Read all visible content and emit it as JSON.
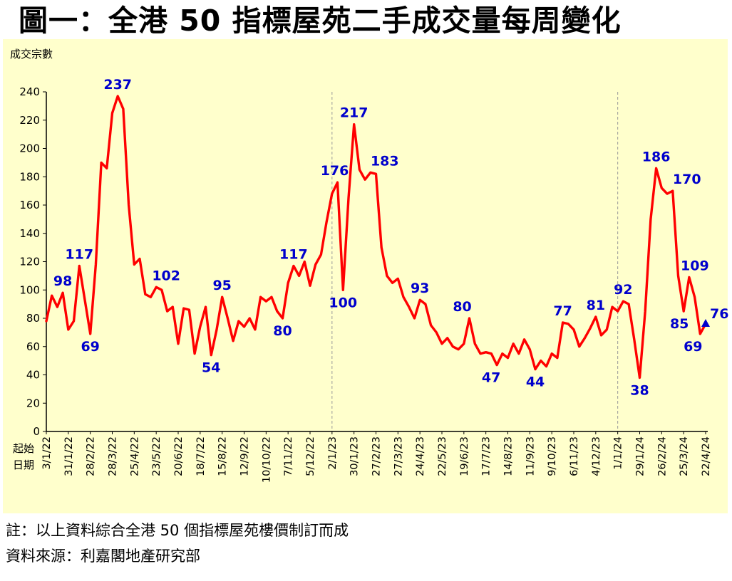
{
  "page": {
    "title": "圖一：全港 50 指標屋苑二手成交量每周變化"
  },
  "notes": {
    "line1": "註：以上資料綜合全港 50 個指標屋苑樓價制訂而成",
    "line2": "資料來源：利嘉閣地產研究部"
  },
  "chart_data": {
    "type": "line",
    "title": "圖一：全港 50 指標屋苑二手成交量每周變化",
    "ylabel": "成交宗數",
    "xlabel": "起始日期",
    "xlabel_lines": [
      "起始",
      "日期"
    ],
    "ylim": [
      0,
      240
    ],
    "yticks": [
      0,
      20,
      40,
      60,
      80,
      100,
      120,
      140,
      160,
      180,
      200,
      220,
      240
    ],
    "grid": "off",
    "legend": "none",
    "x_tick_every": 4,
    "x_tick_labels": [
      "3/1/22",
      "31/1/22",
      "28/2/22",
      "28/3/22",
      "25/4/22",
      "23/5/22",
      "20/6/22",
      "18/7/22",
      "15/8/22",
      "12/9/22",
      "10/10/22",
      "7/11/22",
      "5/12/22",
      "2/1/23",
      "30/1/23",
      "27/2/23",
      "27/3/23",
      "24/4/23",
      "22/5/23",
      "19/6/23",
      "17/7/23",
      "14/8/23",
      "11/9/23",
      "9/10/23",
      "6/11/23",
      "4/12/23",
      "1/1/24",
      "29/1/24",
      "26/2/24",
      "25/3/24",
      "22/4/24"
    ],
    "series": [
      {
        "name": "成交宗數",
        "color": "#FF0000",
        "values": [
          78,
          96,
          88,
          98,
          72,
          78,
          117,
          93,
          69,
          118,
          190,
          186,
          225,
          237,
          228,
          160,
          118,
          122,
          97,
          95,
          102,
          100,
          85,
          88,
          62,
          87,
          86,
          55,
          74,
          88,
          54,
          72,
          95,
          80,
          64,
          78,
          74,
          80,
          72,
          95,
          92,
          95,
          85,
          80,
          105,
          117,
          110,
          120,
          103,
          118,
          125,
          148,
          168,
          176,
          100,
          165,
          217,
          185,
          178,
          183,
          182,
          130,
          110,
          105,
          108,
          95,
          88,
          80,
          93,
          90,
          75,
          70,
          62,
          66,
          60,
          58,
          62,
          80,
          62,
          55,
          56,
          55,
          47,
          55,
          52,
          62,
          55,
          65,
          58,
          44,
          50,
          46,
          55,
          52,
          77,
          76,
          72,
          60,
          66,
          73,
          81,
          68,
          72,
          88,
          85,
          92,
          90,
          65,
          38,
          85,
          150,
          186,
          172,
          168,
          170,
          110,
          85,
          109,
          95,
          69,
          76
        ]
      }
    ],
    "annotations": [
      {
        "index": 3,
        "text": "98",
        "pos": "above"
      },
      {
        "index": 6,
        "text": "117",
        "pos": "above"
      },
      {
        "index": 8,
        "text": "69",
        "pos": "below"
      },
      {
        "index": 13,
        "text": "237",
        "pos": "above"
      },
      {
        "index": 20,
        "text": "102",
        "pos": "above",
        "dx": 14
      },
      {
        "index": 30,
        "text": "54",
        "pos": "below"
      },
      {
        "index": 32,
        "text": "95",
        "pos": "above"
      },
      {
        "index": 43,
        "text": "80",
        "pos": "below"
      },
      {
        "index": 45,
        "text": "117",
        "pos": "above"
      },
      {
        "index": 53,
        "text": "176",
        "pos": "above",
        "dx": -4
      },
      {
        "index": 54,
        "text": "100",
        "pos": "below"
      },
      {
        "index": 56,
        "text": "217",
        "pos": "above"
      },
      {
        "index": 59,
        "text": "183",
        "pos": "above",
        "dx": 20
      },
      {
        "index": 68,
        "text": "93",
        "pos": "above"
      },
      {
        "index": 77,
        "text": "80",
        "pos": "above",
        "dx": -10
      },
      {
        "index": 82,
        "text": "47",
        "pos": "below",
        "dx": -8
      },
      {
        "index": 89,
        "text": "44",
        "pos": "below"
      },
      {
        "index": 94,
        "text": "77",
        "pos": "above"
      },
      {
        "index": 100,
        "text": "81",
        "pos": "above"
      },
      {
        "index": 105,
        "text": "92",
        "pos": "above"
      },
      {
        "index": 108,
        "text": "38",
        "pos": "below"
      },
      {
        "index": 111,
        "text": "186",
        "pos": "above"
      },
      {
        "index": 114,
        "text": "170",
        "pos": "above",
        "dx": 20
      },
      {
        "index": 116,
        "text": "85",
        "pos": "below",
        "dx": -6
      },
      {
        "index": 117,
        "text": "109",
        "pos": "above",
        "dx": 8
      },
      {
        "index": 119,
        "text": "69",
        "pos": "below",
        "dx": -10
      },
      {
        "index": 120,
        "text": "76",
        "pos": "right",
        "dx": 6
      }
    ],
    "dashed_vlines_at_index": [
      52,
      104
    ],
    "end_marker": {
      "shape": "triangle",
      "color": "#0000CC",
      "index": 120
    },
    "colors": {
      "line": "#FF0000",
      "labels": "#0000CC",
      "plot_bg": "#FFFFCC",
      "axis": "#000000",
      "dashed": "#999999"
    }
  }
}
